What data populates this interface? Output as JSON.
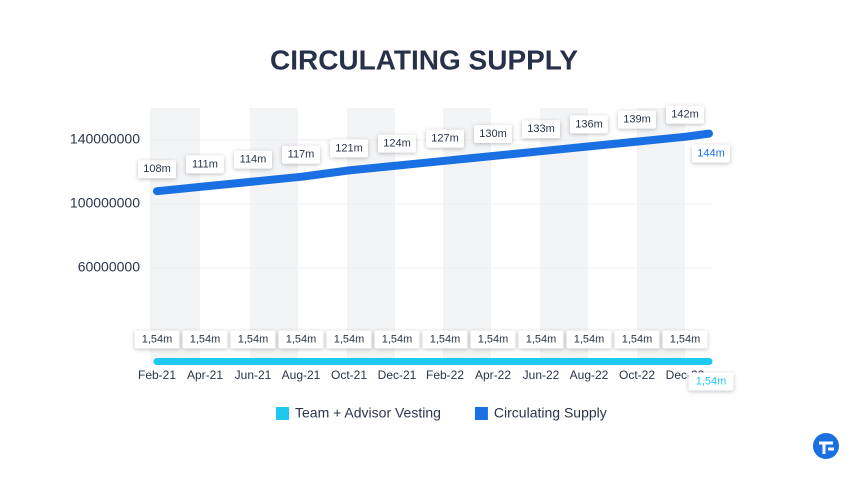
{
  "chart_data": {
    "type": "line",
    "title": "CIRCULATING SUPPLY",
    "categories": [
      "Feb-21",
      null,
      "Apr-21",
      null,
      "Jun-21",
      null,
      "Aug-21",
      null,
      "Oct-21",
      null,
      "Dec-21",
      null,
      "Feb-22",
      null,
      "Apr-22",
      null,
      "Jun-22",
      null,
      "Aug-22",
      null,
      "Oct-22",
      null,
      "Dec-22",
      null
    ],
    "series": [
      {
        "name": "Team + Advisor Vesting",
        "color": "#1ec8ee",
        "values": [
          1540000,
          1540000,
          1540000,
          1540000,
          1540000,
          1540000,
          1540000,
          1540000,
          1540000,
          1540000,
          1540000,
          1540000,
          1540000,
          1540000,
          1540000,
          1540000,
          1540000,
          1540000,
          1540000,
          1540000,
          1540000,
          1540000,
          1540000,
          1540000
        ],
        "value_labels": [
          "1,54m",
          null,
          "1,54m",
          null,
          "1,54m",
          null,
          "1,54m",
          null,
          "1,54m",
          null,
          "1,54m",
          null,
          "1,54m",
          null,
          "1,54m",
          null,
          "1,54m",
          null,
          "1,54m",
          null,
          "1,54m",
          null,
          "1,54m",
          "1,54m"
        ]
      },
      {
        "name": "Circulating Supply",
        "color": "#1a6fe3",
        "values": [
          108000000,
          109500000,
          111000000,
          112500000,
          114000000,
          115500000,
          117000000,
          119000000,
          121000000,
          122500000,
          124000000,
          125500000,
          127000000,
          128500000,
          130000000,
          131500000,
          133000000,
          134500000,
          136000000,
          137500000,
          139000000,
          140500000,
          142000000,
          144000000
        ],
        "value_labels": [
          "108m",
          null,
          "111m",
          null,
          "114m",
          null,
          "117m",
          null,
          "121m",
          null,
          "124m",
          null,
          "127m",
          null,
          "130m",
          null,
          "133m",
          null,
          "136m",
          null,
          "139m",
          null,
          "142m",
          "144m"
        ]
      }
    ],
    "ylim": [
      0,
      160000000
    ],
    "yticks": [
      60000000,
      100000000,
      140000000
    ],
    "grid": true,
    "legend": "bottom"
  }
}
